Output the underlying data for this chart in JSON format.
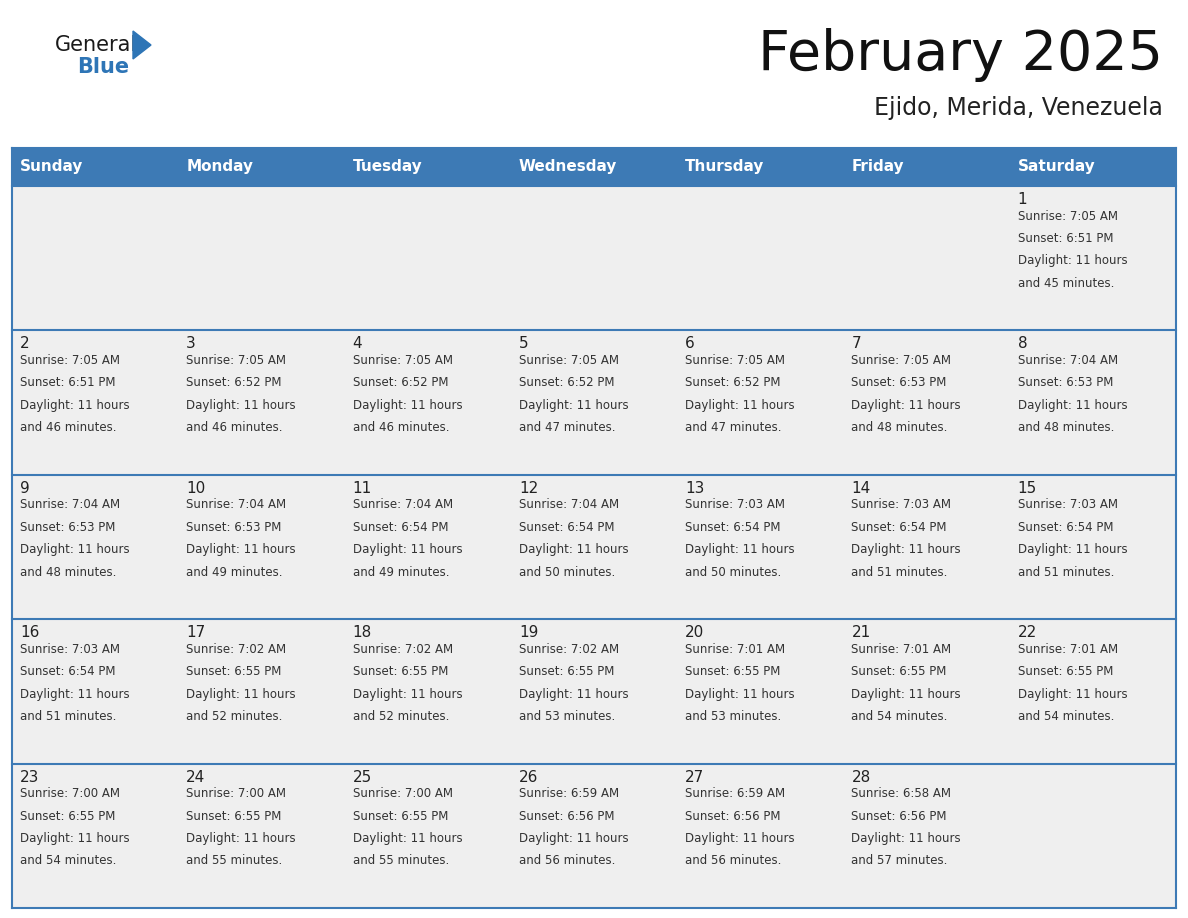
{
  "title": "February 2025",
  "subtitle": "Ejido, Merida, Venezuela",
  "header_color": "#3D7AB5",
  "header_text_color": "#FFFFFF",
  "header_days": [
    "Sunday",
    "Monday",
    "Tuesday",
    "Wednesday",
    "Thursday",
    "Friday",
    "Saturday"
  ],
  "background_color": "#FFFFFF",
  "cell_bg": "#EFEFEF",
  "day_number_color": "#222222",
  "info_text_color": "#333333",
  "logo_general_color": "#1a1a1a",
  "logo_blue_color": "#2E75B6",
  "grid_line_color": "#3D7AB5",
  "days": [
    {
      "date": 1,
      "col": 6,
      "row": 0,
      "sunrise": "7:05 AM",
      "sunset": "6:51 PM",
      "daylight_l1": "Daylight: 11 hours",
      "daylight_l2": "and 45 minutes."
    },
    {
      "date": 2,
      "col": 0,
      "row": 1,
      "sunrise": "7:05 AM",
      "sunset": "6:51 PM",
      "daylight_l1": "Daylight: 11 hours",
      "daylight_l2": "and 46 minutes."
    },
    {
      "date": 3,
      "col": 1,
      "row": 1,
      "sunrise": "7:05 AM",
      "sunset": "6:52 PM",
      "daylight_l1": "Daylight: 11 hours",
      "daylight_l2": "and 46 minutes."
    },
    {
      "date": 4,
      "col": 2,
      "row": 1,
      "sunrise": "7:05 AM",
      "sunset": "6:52 PM",
      "daylight_l1": "Daylight: 11 hours",
      "daylight_l2": "and 46 minutes."
    },
    {
      "date": 5,
      "col": 3,
      "row": 1,
      "sunrise": "7:05 AM",
      "sunset": "6:52 PM",
      "daylight_l1": "Daylight: 11 hours",
      "daylight_l2": "and 47 minutes."
    },
    {
      "date": 6,
      "col": 4,
      "row": 1,
      "sunrise": "7:05 AM",
      "sunset": "6:52 PM",
      "daylight_l1": "Daylight: 11 hours",
      "daylight_l2": "and 47 minutes."
    },
    {
      "date": 7,
      "col": 5,
      "row": 1,
      "sunrise": "7:05 AM",
      "sunset": "6:53 PM",
      "daylight_l1": "Daylight: 11 hours",
      "daylight_l2": "and 48 minutes."
    },
    {
      "date": 8,
      "col": 6,
      "row": 1,
      "sunrise": "7:04 AM",
      "sunset": "6:53 PM",
      "daylight_l1": "Daylight: 11 hours",
      "daylight_l2": "and 48 minutes."
    },
    {
      "date": 9,
      "col": 0,
      "row": 2,
      "sunrise": "7:04 AM",
      "sunset": "6:53 PM",
      "daylight_l1": "Daylight: 11 hours",
      "daylight_l2": "and 48 minutes."
    },
    {
      "date": 10,
      "col": 1,
      "row": 2,
      "sunrise": "7:04 AM",
      "sunset": "6:53 PM",
      "daylight_l1": "Daylight: 11 hours",
      "daylight_l2": "and 49 minutes."
    },
    {
      "date": 11,
      "col": 2,
      "row": 2,
      "sunrise": "7:04 AM",
      "sunset": "6:54 PM",
      "daylight_l1": "Daylight: 11 hours",
      "daylight_l2": "and 49 minutes."
    },
    {
      "date": 12,
      "col": 3,
      "row": 2,
      "sunrise": "7:04 AM",
      "sunset": "6:54 PM",
      "daylight_l1": "Daylight: 11 hours",
      "daylight_l2": "and 50 minutes."
    },
    {
      "date": 13,
      "col": 4,
      "row": 2,
      "sunrise": "7:03 AM",
      "sunset": "6:54 PM",
      "daylight_l1": "Daylight: 11 hours",
      "daylight_l2": "and 50 minutes."
    },
    {
      "date": 14,
      "col": 5,
      "row": 2,
      "sunrise": "7:03 AM",
      "sunset": "6:54 PM",
      "daylight_l1": "Daylight: 11 hours",
      "daylight_l2": "and 51 minutes."
    },
    {
      "date": 15,
      "col": 6,
      "row": 2,
      "sunrise": "7:03 AM",
      "sunset": "6:54 PM",
      "daylight_l1": "Daylight: 11 hours",
      "daylight_l2": "and 51 minutes."
    },
    {
      "date": 16,
      "col": 0,
      "row": 3,
      "sunrise": "7:03 AM",
      "sunset": "6:54 PM",
      "daylight_l1": "Daylight: 11 hours",
      "daylight_l2": "and 51 minutes."
    },
    {
      "date": 17,
      "col": 1,
      "row": 3,
      "sunrise": "7:02 AM",
      "sunset": "6:55 PM",
      "daylight_l1": "Daylight: 11 hours",
      "daylight_l2": "and 52 minutes."
    },
    {
      "date": 18,
      "col": 2,
      "row": 3,
      "sunrise": "7:02 AM",
      "sunset": "6:55 PM",
      "daylight_l1": "Daylight: 11 hours",
      "daylight_l2": "and 52 minutes."
    },
    {
      "date": 19,
      "col": 3,
      "row": 3,
      "sunrise": "7:02 AM",
      "sunset": "6:55 PM",
      "daylight_l1": "Daylight: 11 hours",
      "daylight_l2": "and 53 minutes."
    },
    {
      "date": 20,
      "col": 4,
      "row": 3,
      "sunrise": "7:01 AM",
      "sunset": "6:55 PM",
      "daylight_l1": "Daylight: 11 hours",
      "daylight_l2": "and 53 minutes."
    },
    {
      "date": 21,
      "col": 5,
      "row": 3,
      "sunrise": "7:01 AM",
      "sunset": "6:55 PM",
      "daylight_l1": "Daylight: 11 hours",
      "daylight_l2": "and 54 minutes."
    },
    {
      "date": 22,
      "col": 6,
      "row": 3,
      "sunrise": "7:01 AM",
      "sunset": "6:55 PM",
      "daylight_l1": "Daylight: 11 hours",
      "daylight_l2": "and 54 minutes."
    },
    {
      "date": 23,
      "col": 0,
      "row": 4,
      "sunrise": "7:00 AM",
      "sunset": "6:55 PM",
      "daylight_l1": "Daylight: 11 hours",
      "daylight_l2": "and 54 minutes."
    },
    {
      "date": 24,
      "col": 1,
      "row": 4,
      "sunrise": "7:00 AM",
      "sunset": "6:55 PM",
      "daylight_l1": "Daylight: 11 hours",
      "daylight_l2": "and 55 minutes."
    },
    {
      "date": 25,
      "col": 2,
      "row": 4,
      "sunrise": "7:00 AM",
      "sunset": "6:55 PM",
      "daylight_l1": "Daylight: 11 hours",
      "daylight_l2": "and 55 minutes."
    },
    {
      "date": 26,
      "col": 3,
      "row": 4,
      "sunrise": "6:59 AM",
      "sunset": "6:56 PM",
      "daylight_l1": "Daylight: 11 hours",
      "daylight_l2": "and 56 minutes."
    },
    {
      "date": 27,
      "col": 4,
      "row": 4,
      "sunrise": "6:59 AM",
      "sunset": "6:56 PM",
      "daylight_l1": "Daylight: 11 hours",
      "daylight_l2": "and 56 minutes."
    },
    {
      "date": 28,
      "col": 5,
      "row": 4,
      "sunrise": "6:58 AM",
      "sunset": "6:56 PM",
      "daylight_l1": "Daylight: 11 hours",
      "daylight_l2": "and 57 minutes."
    }
  ]
}
